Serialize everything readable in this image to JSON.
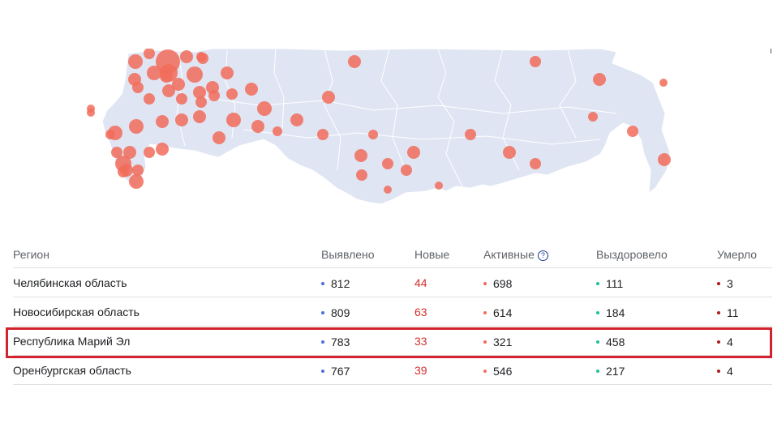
{
  "colors": {
    "map_fill": "#dfe5f3",
    "map_border": "#ffffff",
    "bubble": "#f26c5b",
    "found_dot": "#4a6ee0",
    "new_text": "#d32f2f",
    "active_dot": "#f26c5b",
    "recovered_dot": "#1fbf9f",
    "died_dot": "#b01919",
    "highlight": "#d3232e"
  },
  "table": {
    "headers": {
      "region": "Регион",
      "found": "Выявлено",
      "new": "Новые",
      "active": "Активные",
      "recovered": "Выздоровело",
      "died": "Умерло"
    },
    "help_icon_label": "?",
    "rows": [
      {
        "region": "Челябинская область",
        "found": "812",
        "new": "44",
        "active": "698",
        "recovered": "111",
        "died": "3"
      },
      {
        "region": "Новосибирская область",
        "found": "809",
        "new": "63",
        "active": "614",
        "recovered": "184",
        "died": "11"
      },
      {
        "region": "Республика Марий Эл",
        "found": "783",
        "new": "33",
        "active": "321",
        "recovered": "458",
        "died": "4"
      },
      {
        "region": "Оренбургская область",
        "found": "767",
        "new": "39",
        "active": "546",
        "recovered": "217",
        "died": "4"
      }
    ]
  }
}
